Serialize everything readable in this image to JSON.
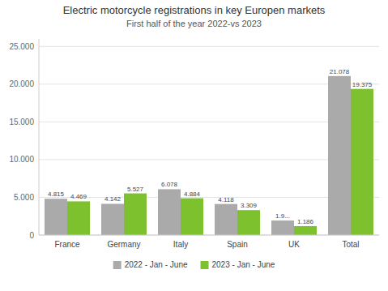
{
  "chart_data": {
    "type": "bar",
    "title": "Electric motorcycle registrations in key Europen markets",
    "subtitle": "First half of the year  2022-vs 2023",
    "categories": [
      "France",
      "Germany",
      "Italy",
      "Spain",
      "UK",
      "Total"
    ],
    "series": [
      {
        "name": "2022 - Jan - June",
        "color": "#aaaaaa",
        "values": [
          4815,
          4142,
          6078,
          4118,
          1925,
          21078
        ],
        "value_labels": [
          "4.815",
          "4.142",
          "6.078",
          "4.118",
          "1.9...",
          "21.078"
        ]
      },
      {
        "name": "2023 - Jan - June",
        "color": "#7dc12e",
        "values": [
          4469,
          5527,
          4884,
          3309,
          1186,
          19375
        ],
        "value_labels": [
          "4.469",
          "5.527",
          "4.884",
          "3.309",
          "1.186",
          "19.375"
        ]
      }
    ],
    "ylim": [
      0,
      26000
    ],
    "yticks": [
      0,
      {
        "value": 5000,
        "label": "5.000"
      },
      {
        "value": 10000,
        "label": "10.000"
      },
      {
        "value": 15000,
        "label": "15.000"
      },
      {
        "value": 20000,
        "label": "20.000"
      },
      {
        "value": 25000,
        "label": "25.000"
      }
    ],
    "grid": true,
    "legend": "bottom",
    "data_labels": true
  }
}
